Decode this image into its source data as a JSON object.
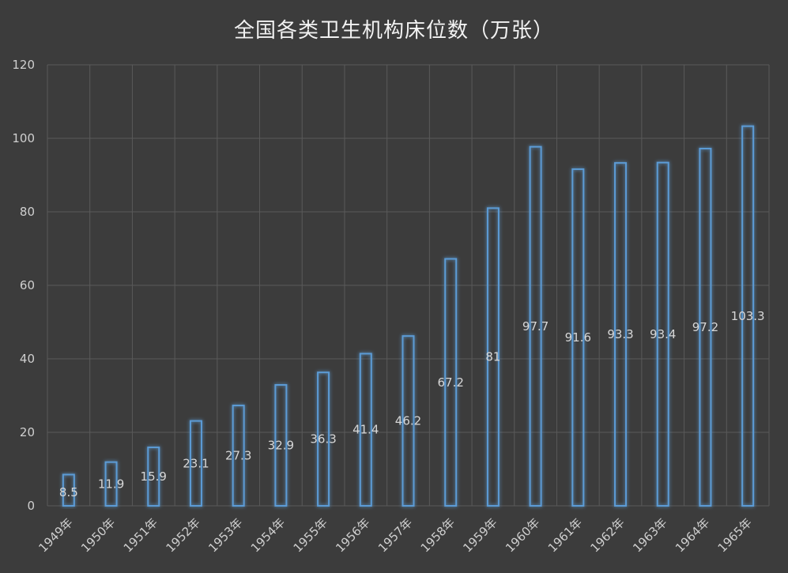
{
  "chart_data": {
    "type": "bar",
    "title": "全国各类卫生机构床位数（万张）",
    "categories": [
      "1949年",
      "1950年",
      "1951年",
      "1952年",
      "1953年",
      "1954年",
      "1955年",
      "1956年",
      "1957年",
      "1958年",
      "1959年",
      "1960年",
      "1961年",
      "1962年",
      "1963年",
      "1964年",
      "1965年"
    ],
    "values": [
      8.5,
      11.9,
      15.9,
      23.1,
      27.3,
      32.9,
      36.3,
      41.4,
      46.2,
      67.2,
      81,
      97.7,
      91.6,
      93.3,
      93.4,
      97.2,
      103.3
    ],
    "data_labels": [
      "8.5",
      "11.9",
      "15.9",
      "23.1",
      "27.3",
      "32.9",
      "36.3",
      "41.4",
      "46.2",
      "67.2",
      "81",
      "97.7",
      "91.6",
      "93.3",
      "93.4",
      "97.2",
      "103.3"
    ],
    "ylim": [
      0,
      120
    ],
    "yticks": [
      0,
      20,
      40,
      60,
      80,
      100,
      120
    ],
    "ytick_labels": [
      "0",
      "20",
      "40",
      "60",
      "80",
      "100",
      "120"
    ],
    "xlabel": "",
    "ylabel": "",
    "grid": true,
    "legend": "none",
    "colors": {
      "background": "#3c3c3c",
      "bar": "#5b9bd5",
      "grid": "#5a5a5a",
      "text": "#cfcfcf"
    }
  }
}
